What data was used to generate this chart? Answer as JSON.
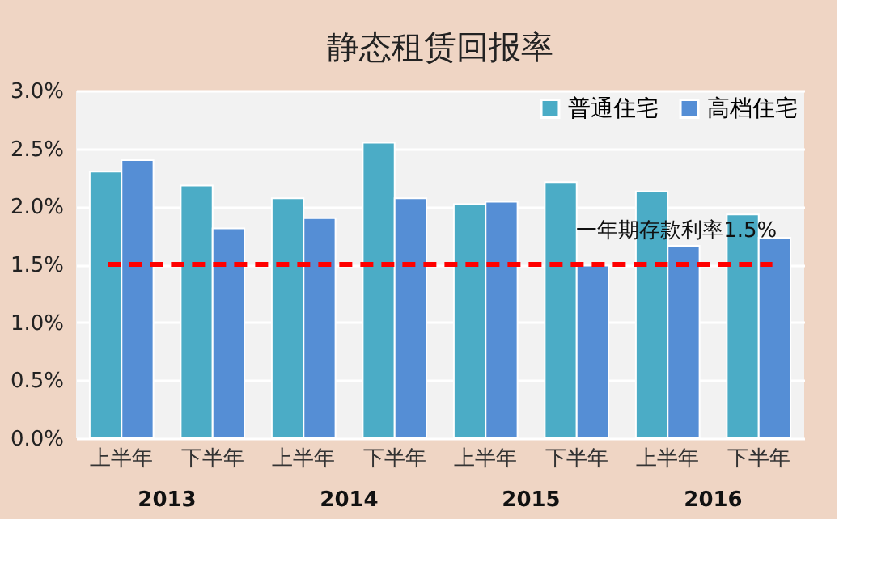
{
  "chart_data": {
    "type": "bar",
    "title": "静态租赁回报率",
    "categories": [
      "上半年",
      "下半年",
      "上半年",
      "下半年",
      "上半年",
      "下半年",
      "上半年",
      "下半年"
    ],
    "series": [
      {
        "name": "普通住宅",
        "color": "#4bacc6",
        "values": [
          2.3,
          2.18,
          2.07,
          2.55,
          2.02,
          2.21,
          2.13,
          1.93
        ]
      },
      {
        "name": "高档住宅",
        "color": "#558ed5",
        "values": [
          2.4,
          1.81,
          1.9,
          2.07,
          2.04,
          1.49,
          1.66,
          1.73
        ]
      }
    ],
    "ylim": [
      0,
      3.0
    ],
    "yticks": [
      {
        "value": 0,
        "label": "0.0%"
      },
      {
        "value": 0.5,
        "label": "0.5%"
      },
      {
        "value": 1.0,
        "label": "1.0%"
      },
      {
        "value": 1.5,
        "label": "1.5%"
      },
      {
        "value": 2.0,
        "label": "2.0%"
      },
      {
        "value": 2.5,
        "label": "2.5%"
      },
      {
        "value": 3.0,
        "label": "3.0%"
      }
    ],
    "ref_lines": [
      {
        "axis": "y",
        "value": 1.5,
        "label": "一年期存款利率1.5%",
        "color": "#ff0000",
        "line_style": "dashed"
      }
    ],
    "annotations": [
      "2013",
      "2014",
      "2015",
      "2016"
    ],
    "grid": "y",
    "legend": "top right"
  }
}
